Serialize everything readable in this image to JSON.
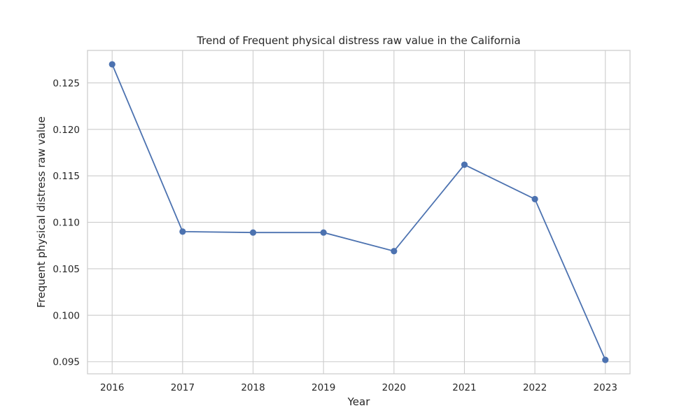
{
  "chart_data": {
    "type": "line",
    "title": "Trend of Frequent physical distress raw value in the California",
    "xlabel": "Year",
    "ylabel": "Frequent physical distress raw value",
    "x": [
      2016,
      2017,
      2018,
      2019,
      2020,
      2021,
      2022,
      2023
    ],
    "x_tick_labels": [
      "2016",
      "2017",
      "2018",
      "2019",
      "2020",
      "2021",
      "2022",
      "2023"
    ],
    "series": [
      {
        "values": [
          0.127,
          0.109,
          0.1089,
          0.1089,
          0.1069,
          0.1162,
          0.1125,
          0.0952
        ],
        "color": "#4c72b0",
        "marker": "circle"
      }
    ],
    "y_ticks": [
      0.095,
      0.1,
      0.105,
      0.11,
      0.115,
      0.12,
      0.125
    ],
    "y_tick_labels": [
      "0.095",
      "0.100",
      "0.105",
      "0.110",
      "0.115",
      "0.120",
      "0.125"
    ],
    "xlim": [
      2015.65,
      2023.35
    ],
    "ylim": [
      0.0937,
      0.1285
    ],
    "grid": true,
    "legend": "none"
  }
}
